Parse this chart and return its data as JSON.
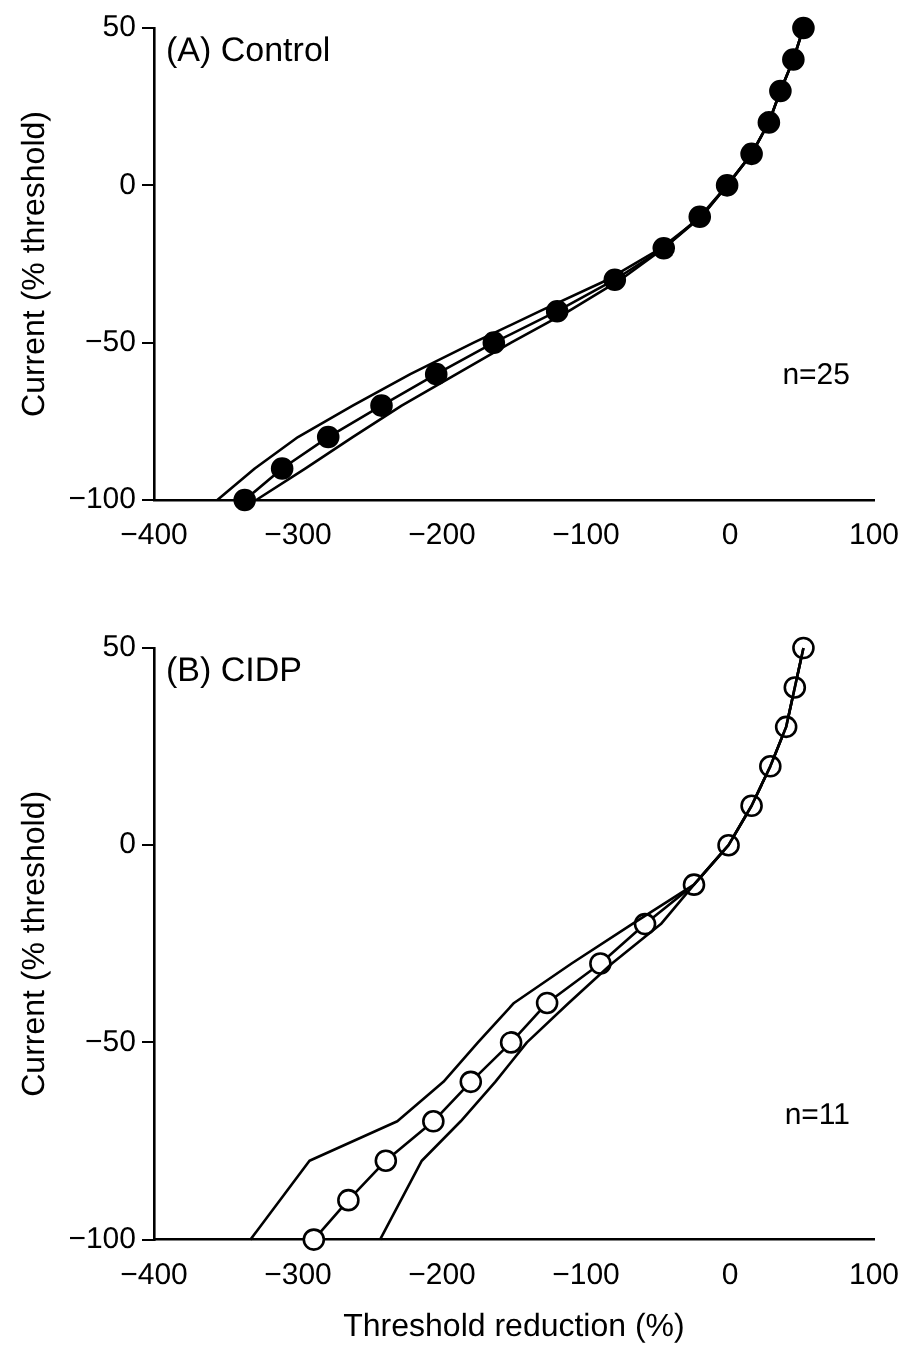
{
  "chart_data": [
    {
      "type": "line",
      "ylabel": "Current (% threshold)",
      "xlim": [
        -400,
        100
      ],
      "xticks": [
        -400,
        -300,
        -200,
        -100,
        0,
        100
      ],
      "ylim": [
        -100,
        50
      ],
      "yticks": [
        -100,
        -50,
        0,
        50
      ],
      "grid": false,
      "legend": false,
      "annotations": [
        "(A) Control",
        "n=25"
      ],
      "series": [
        {
          "color": "#000000",
          "marker": "none",
          "x": [
            -356,
            -330,
            -300,
            -262,
            -222,
            -178,
            -132,
            -85,
            -48,
            -20,
            -2,
            15,
            27,
            35,
            44,
            51
          ],
          "values": [
            -100,
            -90,
            -80,
            -70,
            -60,
            -50,
            -40,
            -30,
            -20,
            -10,
            0,
            10,
            20,
            30,
            40,
            50
          ]
        },
        {
          "color": "#000000",
          "marker": "none",
          "x": [
            -329,
            -295,
            -262,
            -228,
            -190,
            -152,
            -112,
            -76,
            -46,
            -20,
            -2,
            15,
            27,
            35,
            44,
            51
          ],
          "values": [
            -100,
            -90,
            -80,
            -70,
            -60,
            -50,
            -40,
            -30,
            -20,
            -10,
            0,
            10,
            20,
            30,
            40,
            50
          ]
        },
        {
          "color": "#000000",
          "marker": "circle",
          "x": [
            -337,
            -311,
            -279,
            -242,
            -204,
            -164,
            -120,
            -80,
            -46,
            -21,
            -2,
            15,
            27,
            35,
            44,
            51
          ],
          "values": [
            -100,
            -90,
            -80,
            -70,
            -60,
            -50,
            -40,
            -30,
            -20,
            -10,
            0,
            10,
            20,
            30,
            40,
            50
          ]
        }
      ]
    },
    {
      "type": "line",
      "xlabel": "Threshold reduction (%)",
      "ylabel": "Current (% threshold)",
      "xlim": [
        -400,
        100
      ],
      "xticks": [
        -400,
        -300,
        -200,
        -100,
        0,
        100
      ],
      "ylim": [
        -100,
        50
      ],
      "yticks": [
        -100,
        -50,
        0,
        50
      ],
      "grid": false,
      "legend": false,
      "annotations": [
        "(B) CIDP",
        "n=11"
      ],
      "series": [
        {
          "color": "#000000",
          "marker": "none",
          "x": [
            -333,
            -292,
            -231,
            -199,
            -175,
            -150,
            -110,
            -68,
            -25,
            -1,
            15,
            28,
            39,
            45,
            51
          ],
          "values": [
            -100,
            -80,
            -70,
            -60,
            -50,
            -40,
            -30,
            -20,
            -10,
            0,
            10,
            20,
            30,
            40,
            50
          ]
        },
        {
          "color": "#000000",
          "marker": "none",
          "x": [
            -243,
            -214,
            -187,
            -163,
            -141,
            -112,
            -82,
            -48,
            -25,
            -1,
            15,
            28,
            39,
            45,
            51
          ],
          "values": [
            -100,
            -80,
            -70,
            -60,
            -50,
            -40,
            -30,
            -20,
            -10,
            0,
            10,
            20,
            30,
            40,
            50
          ]
        },
        {
          "color": "#000000",
          "colors": [
            "#ffffff",
            "#ffffff",
            "#ffffff",
            "#ffffff",
            "#ffffff",
            "#ffffff",
            "#ffffff",
            "#ffffff",
            "#ffffff",
            "#ffffff",
            "#ffffff",
            "#ffffff",
            "#ffffff",
            "#ffffff",
            "#ffffff",
            "#ffffff"
          ],
          "marker": "circle",
          "x": [
            -289,
            -265,
            -239,
            -206,
            -180,
            -152,
            -127,
            -90,
            -59,
            -25,
            -1,
            15,
            28,
            39,
            45,
            51
          ],
          "values": [
            -100,
            -90,
            -80,
            -70,
            -60,
            -50,
            -40,
            -30,
            -20,
            -10,
            0,
            10,
            20,
            30,
            40,
            50
          ]
        }
      ]
    }
  ]
}
